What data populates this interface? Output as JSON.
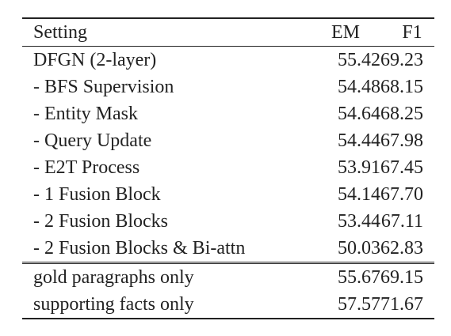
{
  "table": {
    "headers": {
      "setting": "Setting",
      "em": "EM",
      "f1": "F1"
    },
    "ablation_rows": [
      {
        "setting": "DFGN (2-layer)",
        "em": "55.42",
        "f1": "69.23"
      },
      {
        "setting": "- BFS Supervision",
        "em": "54.48",
        "f1": "68.15"
      },
      {
        "setting": "- Entity Mask",
        "em": "54.64",
        "f1": "68.25"
      },
      {
        "setting": "- Query Update",
        "em": "54.44",
        "f1": "67.98"
      },
      {
        "setting": "- E2T Process",
        "em": "53.91",
        "f1": "67.45"
      },
      {
        "setting": "- 1 Fusion Block",
        "em": "54.14",
        "f1": "67.70"
      },
      {
        "setting": "- 2 Fusion Blocks",
        "em": "53.44",
        "f1": "67.11"
      },
      {
        "setting": "- 2 Fusion Blocks & Bi-attn",
        "em": "50.03",
        "f1": "62.83"
      }
    ],
    "extra_rows": [
      {
        "setting": "gold paragraphs only",
        "em": "55.67",
        "f1": "69.15"
      },
      {
        "setting": "supporting facts only",
        "em": "57.57",
        "f1": "71.67"
      }
    ]
  }
}
